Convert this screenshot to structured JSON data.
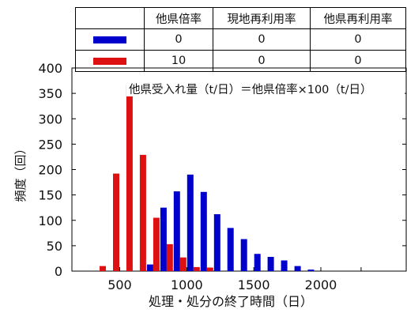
{
  "chart_data": {
    "type": "bar",
    "ylabel": "頻度（回）",
    "xlabel": "処理・処分の終了時間（日）",
    "annotation": "他県受入れ量（t/日）＝他県倍率×100（t/日）",
    "xlim": [
      300,
      2300
    ],
    "ylim": [
      0,
      400
    ],
    "xticks": [
      500,
      1000,
      1500,
      2000
    ],
    "yticks": [
      0,
      50,
      100,
      150,
      200,
      250,
      300,
      350,
      400
    ],
    "grid": false,
    "series": [
      {
        "color": "#0000cc",
        "x": [
          700,
          800,
          900,
          1000,
          1100,
          1200,
          1300,
          1400,
          1500,
          1600,
          1700,
          1800,
          1900
        ],
        "values": [
          13,
          125,
          157,
          190,
          156,
          112,
          85,
          63,
          34,
          28,
          21,
          10,
          3
        ]
      },
      {
        "color": "#dd1111",
        "x": [
          400,
          500,
          600,
          700,
          800,
          900,
          1000,
          1100,
          1200
        ],
        "values": [
          10,
          192,
          367,
          229,
          105,
          53,
          27,
          8,
          7
        ]
      }
    ],
    "legend_table": {
      "headers": [
        "",
        "他県倍率",
        "現地再利用率",
        "他県再利用率"
      ],
      "rows": [
        {
          "color": "#0000cc",
          "cells": [
            "0",
            "0",
            "0"
          ]
        },
        {
          "color": "#dd1111",
          "cells": [
            "10",
            "0",
            "0"
          ]
        }
      ]
    }
  }
}
